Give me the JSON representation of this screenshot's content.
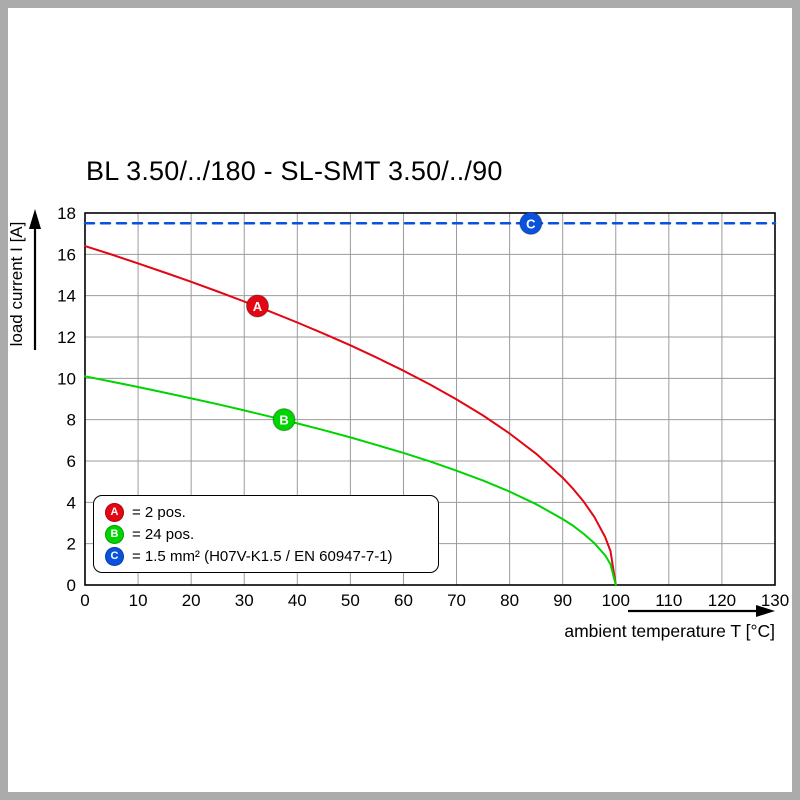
{
  "chart_data": {
    "type": "line",
    "title": "BL 3.50/../180 - SL-SMT 3.50/../90",
    "xlabel": "ambient temperature T [°C]",
    "ylabel": "load current I [A]",
    "xlim": [
      0,
      130
    ],
    "ylim": [
      0,
      18
    ],
    "xticks": [
      0,
      10,
      20,
      30,
      40,
      50,
      60,
      70,
      80,
      90,
      100,
      110,
      120,
      130
    ],
    "yticks": [
      0,
      2,
      4,
      6,
      8,
      10,
      12,
      14,
      16,
      18
    ],
    "grid": true,
    "legend_position": "bottom-left-inside",
    "series": [
      {
        "name": "A",
        "label": "= 2 pos.",
        "color": "#e30613",
        "style": "solid",
        "width": 2,
        "marker": [
          32.5,
          13.5
        ],
        "points": [
          [
            0,
            16.4
          ],
          [
            5,
            15.99
          ],
          [
            10,
            15.56
          ],
          [
            15,
            15.12
          ],
          [
            20,
            14.67
          ],
          [
            25,
            14.2
          ],
          [
            30,
            13.72
          ],
          [
            35,
            13.22
          ],
          [
            40,
            12.7
          ],
          [
            45,
            12.16
          ],
          [
            50,
            11.6
          ],
          [
            55,
            11.0
          ],
          [
            60,
            10.37
          ],
          [
            65,
            9.7
          ],
          [
            70,
            8.98
          ],
          [
            75,
            8.2
          ],
          [
            80,
            7.33
          ],
          [
            85,
            6.35
          ],
          [
            90,
            5.19
          ],
          [
            92,
            4.64
          ],
          [
            94,
            4.02
          ],
          [
            96,
            3.28
          ],
          [
            98,
            2.32
          ],
          [
            99,
            1.64
          ],
          [
            100,
            0
          ]
        ]
      },
      {
        "name": "B",
        "label": "= 24 pos.",
        "color": "#00d400",
        "style": "solid",
        "width": 2,
        "marker": [
          37.5,
          8.0
        ],
        "points": [
          [
            0,
            10.1
          ],
          [
            5,
            9.84
          ],
          [
            10,
            9.58
          ],
          [
            15,
            9.31
          ],
          [
            20,
            9.03
          ],
          [
            25,
            8.75
          ],
          [
            30,
            8.45
          ],
          [
            35,
            8.14
          ],
          [
            40,
            7.82
          ],
          [
            45,
            7.49
          ],
          [
            50,
            7.14
          ],
          [
            55,
            6.77
          ],
          [
            60,
            6.39
          ],
          [
            65,
            5.98
          ],
          [
            70,
            5.53
          ],
          [
            75,
            5.05
          ],
          [
            80,
            4.52
          ],
          [
            85,
            3.91
          ],
          [
            90,
            3.19
          ],
          [
            92,
            2.86
          ],
          [
            94,
            2.47
          ],
          [
            96,
            2.02
          ],
          [
            98,
            1.43
          ],
          [
            99,
            1.0
          ],
          [
            100,
            0
          ]
        ]
      },
      {
        "name": "C",
        "label": "= 1.5 mm² (H07V-K1.5 / EN 60947-7-1)",
        "color": "#0a52dd",
        "style": "dashed",
        "dash": "9 7",
        "width": 2.5,
        "marker": [
          84,
          17.5
        ],
        "points": [
          [
            0,
            17.5
          ],
          [
            130,
            17.5
          ]
        ]
      }
    ]
  }
}
